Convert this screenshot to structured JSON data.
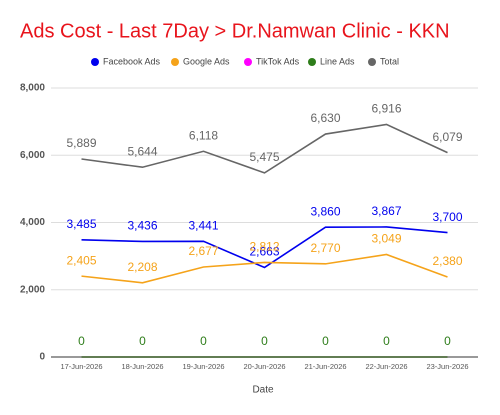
{
  "chart_data": {
    "type": "line",
    "title": "Ads Cost - Last 7Day > Dr.Namwan Clinic - KKN",
    "x_label": "Date",
    "categories": [
      "17-Jun-2026",
      "18-Jun-2026",
      "19-Jun-2026",
      "20-Jun-2026",
      "21-Jun-2026",
      "22-Jun-2026",
      "23-Jun-2026"
    ],
    "series": [
      {
        "name": "Facebook Ads",
        "color": "#0000ee",
        "values": [
          3485,
          3436,
          3441,
          2663,
          3860,
          3867,
          3700
        ],
        "value_labels": [
          "3,485",
          "3,436",
          "3,441",
          "2,663",
          "3,860",
          "3,867",
          "3,700"
        ]
      },
      {
        "name": "Google Ads",
        "color": "#f5a31a",
        "values": [
          2405,
          2208,
          2677,
          2812,
          2770,
          3049,
          2380
        ],
        "value_labels": [
          "2,405",
          "2,208",
          "2,677",
          "2,812",
          "2,770",
          "3,049",
          "2,380"
        ]
      },
      {
        "name": "TikTok Ads",
        "color": "#ff00ff",
        "values": [
          0,
          0,
          0,
          0,
          0,
          0,
          0
        ]
      },
      {
        "name": "Line Ads",
        "color": "#2e7d1a",
        "values": [
          0,
          0,
          0,
          0,
          0,
          0,
          0
        ],
        "value_labels": [
          "0",
          "0",
          "0",
          "0",
          "0",
          "0",
          "0"
        ]
      },
      {
        "name": "Total",
        "color": "#666666",
        "values": [
          5889,
          5644,
          6118,
          5475,
          6630,
          6916,
          6079
        ],
        "value_labels": [
          "5,889",
          "5,644",
          "6,118",
          "5,475",
          "6,630",
          "6,916",
          "6,079"
        ]
      }
    ],
    "ylim": [
      0,
      8000
    ],
    "yticks": [
      0,
      {
        "value": 2000,
        "label": "2,000"
      },
      {
        "value": 4000,
        "label": "4,000"
      },
      {
        "value": 6000,
        "label": "6,000"
      },
      {
        "value": 8000,
        "label": "8,000"
      }
    ],
    "grid": true,
    "legend": "top"
  }
}
